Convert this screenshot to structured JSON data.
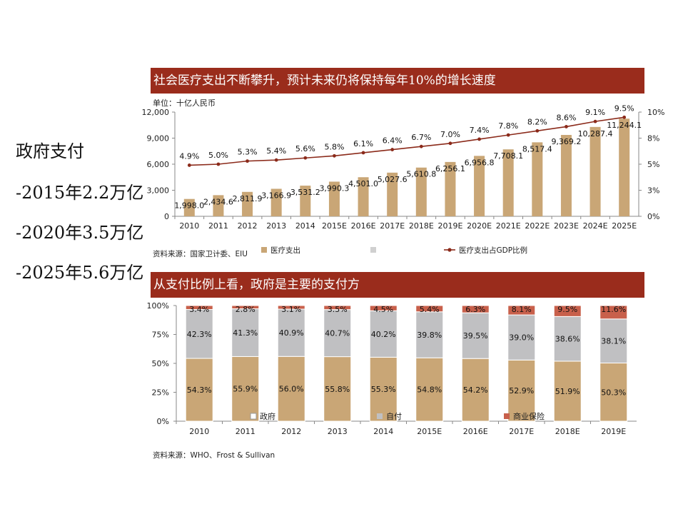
{
  "left_note": {
    "title": "政府支付",
    "line1": "-2015年2.2万亿",
    "line2": "-2020年3.5万亿",
    "line3": "-2025年5.6万亿"
  },
  "colors": {
    "banner": "#9a2c1c",
    "tan": "#c9a676",
    "gray": "#c0c0c2",
    "red": "#c8604b",
    "line": "#8b2a1a"
  },
  "chart_data": [
    {
      "type": "bar",
      "title": "社会医疗支出不断攀升，预计未来仍将保持每年10%的增长速度",
      "unit": "单位：十亿人民币",
      "source": "资料来源：国家卫计委、EIU",
      "categories": [
        "2010",
        "2011",
        "2012",
        "2013",
        "2014",
        "2015E",
        "2016E",
        "2017E",
        "2018E",
        "2019E",
        "2020E",
        "2021E",
        "2022E",
        "2023E",
        "2024E",
        "2025E"
      ],
      "y_left": {
        "ticks": [
          "0",
          "3,000",
          "6,000",
          "9,000",
          "12,000"
        ],
        "min": 0,
        "max": 12000
      },
      "y_right": {
        "ticks": [
          "0%",
          "3%",
          "5%",
          "8%",
          "10%"
        ],
        "min": 0,
        "max": 10
      },
      "series": [
        {
          "name": "医疗支出",
          "kind": "bar",
          "axis": "left",
          "values": [
            1998.0,
            2434.6,
            2811.9,
            3166.9,
            3531.2,
            3990.3,
            4501.0,
            5027.6,
            5610.8,
            6256.1,
            6956.8,
            7708.1,
            8517.4,
            9369.2,
            10287.4,
            11244.1
          ],
          "labels": [
            "1,998.0",
            "2,434.6",
            "2,811.9",
            "3,166.9",
            "3,531.2",
            "3,990.3",
            "4,501.0",
            "5,027.6",
            "5,610.8",
            "6,256.1",
            "6,956.8",
            "7,708.1",
            "8,517.4",
            "9,369.2",
            "10,287.4",
            "11,244.1"
          ]
        },
        {
          "name": "医疗支出占GDP比例",
          "kind": "line",
          "axis": "right",
          "values": [
            4.9,
            5.0,
            5.3,
            5.4,
            5.6,
            5.8,
            6.1,
            6.4,
            6.7,
            7.0,
            7.4,
            7.8,
            8.2,
            8.6,
            9.1,
            9.5
          ],
          "labels": [
            "4.9%",
            "5.0%",
            "5.3%",
            "5.4%",
            "5.6%",
            "5.8%",
            "6.1%",
            "6.4%",
            "6.7%",
            "7.0%",
            "7.4%",
            "7.8%",
            "8.2%",
            "8.6%",
            "9.1%",
            "9.5%"
          ]
        }
      ],
      "legend": [
        {
          "name": "医疗支出",
          "swatch": "square"
        },
        {
          "name": "",
          "swatch": "square-gray"
        },
        {
          "name": "医疗支出占GDP比例",
          "swatch": "line-marker"
        }
      ]
    },
    {
      "type": "bar",
      "stacked": "percent",
      "title": "从支付比例上看，政府是主要的支付方",
      "source": "资料来源：WHO、Frost & Sullivan",
      "categories": [
        "2010",
        "2011",
        "2012",
        "2013",
        "2014",
        "2015E",
        "2016E",
        "2017E",
        "2018E",
        "2019E"
      ],
      "y_ticks": [
        "0%",
        "25%",
        "50%",
        "75%",
        "100%"
      ],
      "series": [
        {
          "name": "政府",
          "values": [
            54.3,
            55.9,
            56.0,
            55.8,
            55.3,
            54.8,
            54.2,
            52.9,
            51.9,
            50.3
          ],
          "labels": [
            "54.3%",
            "55.9%",
            "56.0%",
            "55.8%",
            "55.3%",
            "54.8%",
            "54.2%",
            "52.9%",
            "51.9%",
            "50.3%"
          ]
        },
        {
          "name": "自付",
          "values": [
            42.3,
            41.3,
            40.9,
            40.7,
            40.2,
            39.8,
            39.5,
            39.0,
            38.6,
            38.1
          ],
          "labels": [
            "42.3%",
            "41.3%",
            "40.9%",
            "40.7%",
            "40.2%",
            "39.8%",
            "39.5%",
            "39.0%",
            "38.6%",
            "38.1%"
          ]
        },
        {
          "name": "商业保险",
          "values": [
            3.4,
            2.8,
            3.1,
            3.5,
            4.5,
            5.4,
            6.3,
            8.1,
            9.5,
            11.6
          ],
          "labels": [
            "3.4%",
            "2.8%",
            "3.1%",
            "3.5%",
            "4.5%",
            "5.4%",
            "6.3%",
            "8.1%",
            "9.5%",
            "11.6%"
          ]
        }
      ]
    }
  ]
}
